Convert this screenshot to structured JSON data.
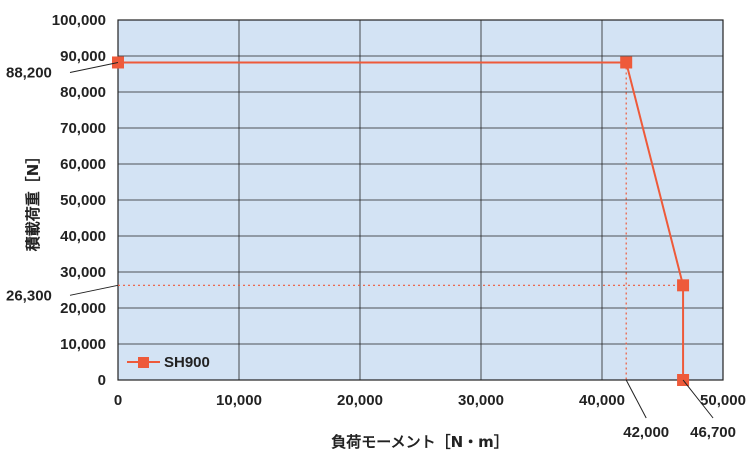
{
  "chart_data": {
    "type": "line",
    "xlabel": "負荷モーメント［N・m］",
    "ylabel": "積載荷重［N］",
    "xlim": [
      0,
      50000
    ],
    "ylim": [
      0,
      100000
    ],
    "x_ticks": [
      "0",
      "10,000",
      "20,000",
      "30,000",
      "40,000",
      "50,000"
    ],
    "y_ticks": [
      "0",
      "10,000",
      "20,000",
      "30,000",
      "40,000",
      "50,000",
      "60,000",
      "70,000",
      "80,000",
      "90,000",
      "100,000"
    ],
    "grid": true,
    "legend_position": "bottom-left",
    "series": [
      {
        "name": "SH900",
        "color": "#ee5a3a",
        "marker": "square",
        "points": [
          {
            "x": 0,
            "y": 88200
          },
          {
            "x": 42000,
            "y": 88200
          },
          {
            "x": 46700,
            "y": 26300
          },
          {
            "x": 46700,
            "y": 0
          }
        ]
      }
    ],
    "annotations": [
      {
        "label": "88,200",
        "axis": "y",
        "value": 88200
      },
      {
        "label": "26,300",
        "axis": "y",
        "value": 26300
      },
      {
        "label": "42,000",
        "axis": "x",
        "value": 42000
      },
      {
        "label": "46,700",
        "axis": "x",
        "value": 46700
      }
    ],
    "colors": {
      "plot_bg": "#d3e3f4",
      "grid": "#222222",
      "line": "#ee5a3a",
      "guide": "#ee5a3a"
    }
  }
}
